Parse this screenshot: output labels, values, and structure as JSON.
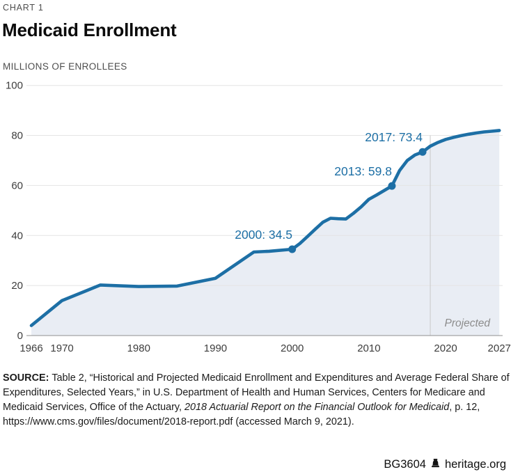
{
  "header": {
    "kicker": "CHART 1",
    "title": "Medicaid Enrollment"
  },
  "chart_data": {
    "type": "area",
    "title": "Medicaid Enrollment",
    "unit_label": "MILLIONS OF ENROLLEES",
    "x": [
      1966,
      1970,
      1975,
      1980,
      1985,
      1990,
      1995,
      1997,
      2000,
      2001,
      2002,
      2003,
      2004,
      2005,
      2006,
      2007,
      2008,
      2009,
      2010,
      2011,
      2012,
      2013,
      2014,
      2015,
      2016,
      2017,
      2018,
      2019,
      2020,
      2021,
      2022,
      2023,
      2024,
      2025,
      2026,
      2027
    ],
    "y": [
      4.0,
      14.0,
      20.2,
      19.6,
      19.8,
      22.9,
      33.4,
      33.7,
      34.5,
      36.8,
      39.6,
      42.5,
      45.3,
      46.9,
      46.7,
      46.6,
      48.9,
      51.5,
      54.5,
      56.2,
      58.0,
      59.8,
      66.0,
      70.0,
      72.2,
      73.4,
      75.7,
      77.2,
      78.4,
      79.2,
      79.9,
      80.5,
      81.0,
      81.4,
      81.7,
      82.0
    ],
    "xlim": [
      1966,
      2027
    ],
    "ylim": [
      0,
      100
    ],
    "yticks": [
      0,
      20,
      40,
      60,
      80,
      100
    ],
    "xticks": [
      1966,
      1970,
      1980,
      1990,
      2000,
      2010,
      2020,
      2027
    ],
    "projection_start": 2018,
    "projected_label": "Projected",
    "annotations": [
      {
        "year": 2000,
        "value": 34.5,
        "label": "2000: 34.5"
      },
      {
        "year": 2013,
        "value": 59.8,
        "label": "2013: 59.8"
      },
      {
        "year": 2017,
        "value": 73.4,
        "label": "2017: 73.4"
      }
    ],
    "colors": {
      "line": "#1d6fa5",
      "fill": "#e9edf4",
      "grid": "#e4e4e4",
      "axis": "#8f8f8f",
      "divider": "#c9c9c9",
      "tick": "#3d3d3d",
      "annotation": "#1d6fa5",
      "projected_text": "#8c8c8c"
    }
  },
  "source": {
    "lines": [
      [
        {
          "t": "SOURCE: ",
          "b": true
        },
        {
          "t": "Table 2, “Historical and Projected Medicaid Enrollment and Expenditures and Average Federal Share of"
        }
      ],
      [
        {
          "t": "Expenditures, Selected Years,” in U.S. Department of Health and Human Services, Centers for Medicare and"
        }
      ],
      [
        {
          "t": "Medicaid Services, Office of the Actuary, "
        },
        {
          "t": "2018 Actuarial Report on the Financial Outlook for Medicaid",
          "i": true
        },
        {
          "t": ", p. 12,"
        }
      ],
      [
        {
          "t": "https://www.cms.gov/files/document/2018-report.pdf (accessed March 9, 2021)."
        }
      ]
    ]
  },
  "footer": {
    "report_id": "BG3604",
    "site": "heritage.org",
    "icon": "liberty-bell-icon"
  }
}
